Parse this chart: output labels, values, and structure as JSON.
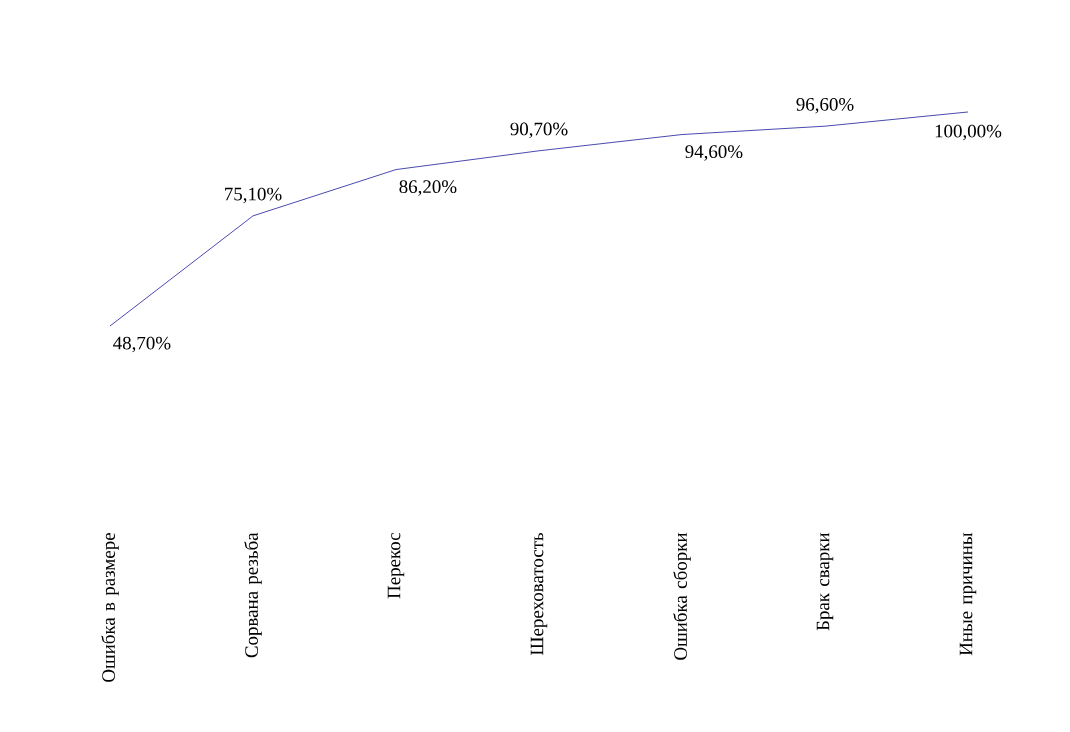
{
  "chart_data": {
    "type": "line",
    "categories": [
      "Ошибка в размере",
      "Сорвана резьба",
      "Перекос",
      "Шереховатость",
      "Ошибка сборки",
      "Брак сварки",
      "Иные причины"
    ],
    "values": [
      48.7,
      75.1,
      86.2,
      90.7,
      94.6,
      96.6,
      100
    ],
    "value_labels": [
      "48,70%",
      "75,10%",
      "86,20%",
      "90,70%",
      "94,60%",
      "96,60%",
      "100,00%"
    ],
    "color": "#1c1c9c",
    "tick_labels": "x",
    "marker": "none",
    "line_style": "solid"
  }
}
